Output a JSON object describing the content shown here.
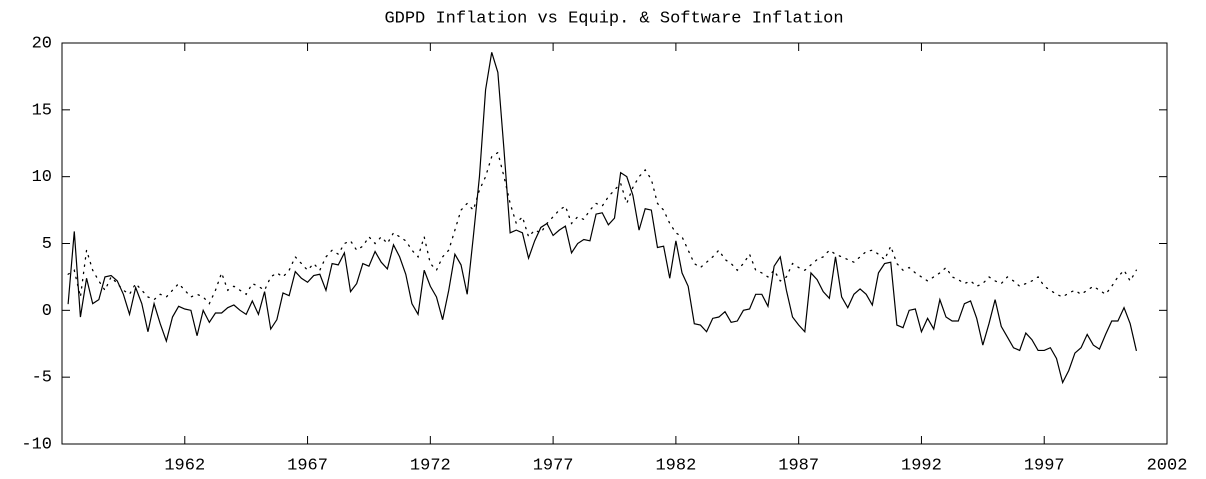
{
  "chart_data": {
    "type": "line",
    "title": "GDPD Inflation vs Equip. &  Software Inflation",
    "x": [
      1957.25,
      1957.5,
      1957.75,
      1958,
      1958.25,
      1958.5,
      1958.75,
      1959,
      1959.25,
      1959.5,
      1959.75,
      1960,
      1960.25,
      1960.5,
      1960.75,
      1961,
      1961.25,
      1961.5,
      1961.75,
      1962,
      1962.25,
      1962.5,
      1962.75,
      1963,
      1963.25,
      1963.5,
      1963.75,
      1964,
      1964.25,
      1964.5,
      1964.75,
      1965,
      1965.25,
      1965.5,
      1965.75,
      1966,
      1966.25,
      1966.5,
      1966.75,
      1967,
      1967.25,
      1967.5,
      1967.75,
      1968,
      1968.25,
      1968.5,
      1968.75,
      1969,
      1969.25,
      1969.5,
      1969.75,
      1970,
      1970.25,
      1970.5,
      1970.75,
      1971,
      1971.25,
      1971.5,
      1971.75,
      1972,
      1972.25,
      1972.5,
      1972.75,
      1973,
      1973.25,
      1973.5,
      1973.75,
      1974,
      1974.25,
      1974.5,
      1974.75,
      1975,
      1975.25,
      1975.5,
      1975.75,
      1976,
      1976.25,
      1976.5,
      1976.75,
      1977,
      1977.25,
      1977.5,
      1977.75,
      1978,
      1978.25,
      1978.5,
      1978.75,
      1979,
      1979.25,
      1979.5,
      1979.75,
      1980,
      1980.25,
      1980.5,
      1980.75,
      1981,
      1981.25,
      1981.5,
      1981.75,
      1982,
      1982.25,
      1982.5,
      1982.75,
      1983,
      1983.25,
      1983.5,
      1983.75,
      1984,
      1984.25,
      1984.5,
      1984.75,
      1985,
      1985.25,
      1985.5,
      1985.75,
      1986,
      1986.25,
      1986.5,
      1986.75,
      1987,
      1987.25,
      1987.5,
      1987.75,
      1988,
      1988.25,
      1988.5,
      1988.75,
      1989,
      1989.25,
      1989.5,
      1989.75,
      1990,
      1990.25,
      1990.5,
      1990.75,
      1991,
      1991.25,
      1991.5,
      1991.75,
      1992,
      1992.25,
      1992.5,
      1992.75,
      1993,
      1993.25,
      1993.5,
      1993.75,
      1994,
      1994.25,
      1994.5,
      1994.75,
      1995,
      1995.25,
      1995.5,
      1995.75,
      1996,
      1996.25,
      1996.5,
      1996.75,
      1997,
      1997.25,
      1997.5,
      1997.75,
      1998,
      1998.25,
      1998.5,
      1998.75,
      1999,
      1999.25,
      1999.5,
      1999.75,
      2000,
      2000.25,
      2000.5,
      2000.75
    ],
    "series": [
      {
        "color": "#000000",
        "line_style": "solid",
        "values": [
          0.5,
          5.9,
          -0.5,
          2.4,
          0.5,
          0.8,
          2.5,
          2.6,
          2.2,
          1.2,
          -0.3,
          1.7,
          0.5,
          -1.6,
          0.5,
          -1.0,
          -2.3,
          -0.5,
          0.3,
          0.1,
          0.0,
          -1.9,
          0.0,
          -0.9,
          -0.2,
          -0.2,
          0.2,
          0.4,
          0.0,
          -0.3,
          0.7,
          -0.3,
          1.4,
          -1.4,
          -0.7,
          1.3,
          1.1,
          2.9,
          2.4,
          2.1,
          2.6,
          2.7,
          1.5,
          3.5,
          3.4,
          4.3,
          1.4,
          2.0,
          3.5,
          3.3,
          4.4,
          3.6,
          3.1,
          4.9,
          4.0,
          2.7,
          0.5,
          -0.3,
          3.0,
          1.8,
          1.0,
          -0.7,
          1.5,
          4.2,
          3.4,
          1.2,
          5.5,
          10.0,
          16.5,
          19.3,
          17.8,
          12.0,
          5.8,
          6.0,
          5.8,
          3.9,
          5.2,
          6.2,
          6.5,
          5.6,
          6.0,
          6.3,
          4.3,
          5.0,
          5.3,
          5.2,
          7.2,
          7.3,
          6.4,
          6.9,
          10.3,
          10.0,
          8.6,
          6.0,
          7.6,
          7.5,
          4.7,
          4.8,
          2.4,
          5.2,
          2.8,
          1.8,
          -1.0,
          -1.1,
          -1.6,
          -0.6,
          -0.5,
          -0.1,
          -0.9,
          -0.8,
          0.0,
          0.1,
          1.2,
          1.2,
          0.3,
          3.3,
          4.0,
          1.5,
          -0.5,
          -1.1,
          -1.6,
          2.8,
          2.3,
          1.4,
          0.9,
          4.0,
          1.0,
          0.2,
          1.2,
          1.6,
          1.2,
          0.4,
          2.8,
          3.5,
          3.6,
          -1.1,
          -1.3,
          0.0,
          0.1,
          -1.6,
          -0.6,
          -1.4,
          0.8,
          -0.5,
          -0.8,
          -0.8,
          0.5,
          0.7,
          -0.6,
          -2.6,
          -1.0,
          0.8,
          -1.2,
          -2.0,
          -2.8,
          -3.0,
          -1.7,
          -2.2,
          -3.0,
          -3.0,
          -2.8,
          -3.6,
          -5.4,
          -4.5,
          -3.2,
          -2.8,
          -1.8,
          -2.6,
          -2.9,
          -1.8,
          -0.8,
          -0.8,
          0.2,
          -1.0,
          -3.0
        ]
      },
      {
        "color": "#000000",
        "line_style": "dotted",
        "values": [
          2.7,
          3.0,
          1.0,
          4.5,
          3.0,
          2.2,
          1.5,
          2.5,
          2.0,
          1.5,
          1.2,
          2.0,
          1.5,
          1.0,
          0.8,
          1.2,
          1.0,
          1.5,
          2.0,
          1.5,
          1.0,
          1.2,
          1.0,
          0.5,
          1.5,
          2.8,
          1.5,
          1.8,
          1.5,
          1.2,
          2.0,
          1.8,
          1.5,
          2.5,
          2.8,
          2.5,
          3.0,
          4.0,
          3.5,
          3.0,
          3.5,
          3.0,
          4.0,
          4.5,
          4.2,
          5.0,
          5.2,
          4.5,
          4.8,
          5.5,
          5.0,
          5.5,
          5.0,
          5.8,
          5.5,
          5.2,
          4.5,
          4.0,
          5.5,
          3.5,
          3.0,
          4.0,
          4.5,
          6.0,
          7.5,
          8.0,
          7.5,
          9.0,
          10.0,
          11.5,
          11.8,
          10.0,
          8.0,
          6.5,
          7.0,
          5.5,
          6.0,
          5.8,
          6.5,
          7.0,
          7.5,
          7.8,
          6.5,
          7.0,
          6.8,
          7.5,
          8.0,
          7.8,
          8.5,
          9.0,
          9.5,
          8.0,
          9.2,
          10.0,
          10.5,
          9.8,
          8.0,
          7.5,
          6.5,
          5.8,
          5.5,
          4.5,
          3.5,
          3.2,
          3.6,
          4.0,
          4.5,
          3.8,
          3.5,
          3.0,
          3.5,
          4.2,
          3.0,
          2.8,
          2.5,
          3.0,
          2.2,
          2.5,
          3.5,
          3.2,
          3.0,
          3.4,
          3.8,
          4.0,
          4.5,
          4.2,
          4.0,
          3.8,
          3.6,
          4.0,
          4.4,
          4.5,
          4.2,
          3.8,
          4.8,
          3.5,
          3.0,
          3.2,
          2.8,
          2.5,
          2.2,
          2.5,
          2.8,
          3.2,
          2.5,
          2.3,
          2.0,
          2.2,
          1.8,
          2.0,
          2.5,
          2.2,
          2.0,
          2.5,
          2.2,
          1.8,
          2.0,
          2.2,
          2.5,
          1.8,
          1.5,
          1.2,
          1.0,
          1.3,
          1.5,
          1.2,
          1.5,
          1.8,
          1.5,
          1.2,
          1.8,
          2.5,
          3.0,
          2.2,
          3.0
        ]
      }
    ],
    "xlim": [
      1957,
      2002
    ],
    "xticks": [
      1962,
      1967,
      1972,
      1977,
      1982,
      1987,
      1992,
      1997,
      2002
    ],
    "ylim": [
      -10,
      20
    ],
    "yticks": [
      -10,
      -5,
      0,
      5,
      10,
      15,
      20
    ]
  }
}
